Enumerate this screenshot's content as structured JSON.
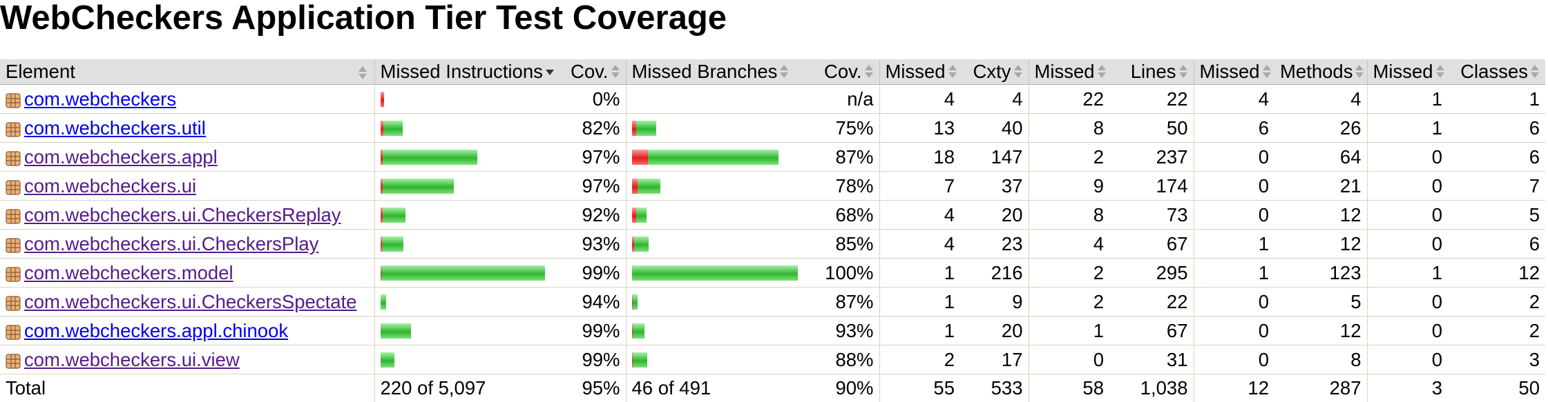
{
  "title": "WebCheckers Application Tier Test Coverage",
  "colors": {
    "missed": "#e21b1b",
    "covered": "#2fb52f",
    "header_bg": "#e0e0e0"
  },
  "header": {
    "element": "Element",
    "missed_instructions": "Missed Instructions",
    "cov_instr": "Cov.",
    "missed_branches": "Missed Branches",
    "cov_branch": "Cov.",
    "missed_cxty": "Missed",
    "cxty": "Cxty",
    "missed_lines": "Missed",
    "lines": "Lines",
    "missed_methods": "Missed",
    "methods": "Methods",
    "missed_classes": "Missed",
    "classes": "Classes"
  },
  "rows": [
    {
      "name": "com.webcheckers",
      "icon": "package-icon",
      "visited": false,
      "instr_missed": 5,
      "instr_covered": 0,
      "instr_cov": "0%",
      "br_missed": 0,
      "br_covered": 0,
      "br_cov": "n/a",
      "missed_cxty": "4",
      "cxty": "4",
      "missed_lines": "22",
      "lines": "22",
      "missed_methods": "4",
      "methods": "4",
      "missed_classes": "1",
      "classes": "1"
    },
    {
      "name": "com.webcheckers.util",
      "icon": "package-icon",
      "visited": false,
      "instr_missed": 4,
      "instr_covered": 28,
      "instr_cov": "82%",
      "br_missed": 6,
      "br_covered": 29,
      "br_cov": "75%",
      "missed_cxty": "13",
      "cxty": "40",
      "missed_lines": "8",
      "lines": "50",
      "missed_methods": "6",
      "methods": "26",
      "missed_classes": "1",
      "classes": "6"
    },
    {
      "name": "com.webcheckers.appl",
      "icon": "package-icon",
      "visited": true,
      "instr_missed": 3,
      "instr_covered": 137,
      "instr_cov": "97%",
      "br_missed": 23,
      "br_covered": 189,
      "br_cov": "87%",
      "missed_cxty": "18",
      "cxty": "147",
      "missed_lines": "2",
      "lines": "237",
      "missed_methods": "0",
      "methods": "64",
      "missed_classes": "0",
      "classes": "6"
    },
    {
      "name": "com.webcheckers.ui",
      "icon": "package-icon",
      "visited": true,
      "instr_missed": 3,
      "instr_covered": 103,
      "instr_cov": "97%",
      "br_missed": 8,
      "br_covered": 33,
      "br_cov": "78%",
      "missed_cxty": "7",
      "cxty": "37",
      "missed_lines": "9",
      "lines": "174",
      "missed_methods": "0",
      "methods": "21",
      "missed_classes": "0",
      "classes": "7"
    },
    {
      "name": "com.webcheckers.ui.CheckersReplay",
      "icon": "package-icon",
      "visited": true,
      "instr_missed": 3,
      "instr_covered": 33,
      "instr_cov": "92%",
      "br_missed": 6,
      "br_covered": 15,
      "br_cov": "68%",
      "missed_cxty": "4",
      "cxty": "20",
      "missed_lines": "8",
      "lines": "73",
      "missed_methods": "0",
      "methods": "12",
      "missed_classes": "0",
      "classes": "5"
    },
    {
      "name": "com.webcheckers.ui.CheckersPlay",
      "icon": "package-icon",
      "visited": true,
      "instr_missed": 2,
      "instr_covered": 31,
      "instr_cov": "93%",
      "br_missed": 3,
      "br_covered": 21,
      "br_cov": "85%",
      "missed_cxty": "4",
      "cxty": "23",
      "missed_lines": "4",
      "lines": "67",
      "missed_methods": "1",
      "methods": "12",
      "missed_classes": "0",
      "classes": "6"
    },
    {
      "name": "com.webcheckers.model",
      "icon": "package-icon",
      "visited": true,
      "instr_missed": 1,
      "instr_covered": 237,
      "instr_cov": "99%",
      "br_missed": 0,
      "br_covered": 240,
      "br_cov": "100%",
      "missed_cxty": "1",
      "cxty": "216",
      "missed_lines": "2",
      "lines": "295",
      "missed_methods": "1",
      "methods": "123",
      "missed_classes": "1",
      "classes": "12"
    },
    {
      "name": "com.webcheckers.ui.CheckersSpectate",
      "icon": "package-icon",
      "visited": true,
      "instr_missed": 0,
      "instr_covered": 8,
      "instr_cov": "94%",
      "br_missed": 1,
      "br_covered": 7,
      "br_cov": "87%",
      "missed_cxty": "1",
      "cxty": "9",
      "missed_lines": "2",
      "lines": "22",
      "missed_methods": "0",
      "methods": "5",
      "missed_classes": "0",
      "classes": "2"
    },
    {
      "name": "com.webcheckers.appl.chinook",
      "icon": "package-icon",
      "visited": false,
      "instr_missed": 0,
      "instr_covered": 44,
      "instr_cov": "99%",
      "br_missed": 1,
      "br_covered": 17,
      "br_cov": "93%",
      "missed_cxty": "1",
      "cxty": "20",
      "missed_lines": "1",
      "lines": "67",
      "missed_methods": "0",
      "methods": "12",
      "missed_classes": "0",
      "classes": "2"
    },
    {
      "name": "com.webcheckers.ui.view",
      "icon": "package-icon",
      "visited": true,
      "instr_missed": 0,
      "instr_covered": 20,
      "instr_cov": "99%",
      "br_missed": 1,
      "br_covered": 21,
      "br_cov": "88%",
      "missed_cxty": "2",
      "cxty": "17",
      "missed_lines": "0",
      "lines": "31",
      "missed_methods": "0",
      "methods": "8",
      "missed_classes": "0",
      "classes": "3"
    }
  ],
  "total": {
    "label": "Total",
    "instr": "220 of 5,097",
    "instr_cov": "95%",
    "br": "46 of 491",
    "br_cov": "90%",
    "missed_cxty": "55",
    "cxty": "533",
    "missed_lines": "58",
    "lines": "1,038",
    "missed_methods": "12",
    "methods": "287",
    "missed_classes": "3",
    "classes": "50"
  }
}
